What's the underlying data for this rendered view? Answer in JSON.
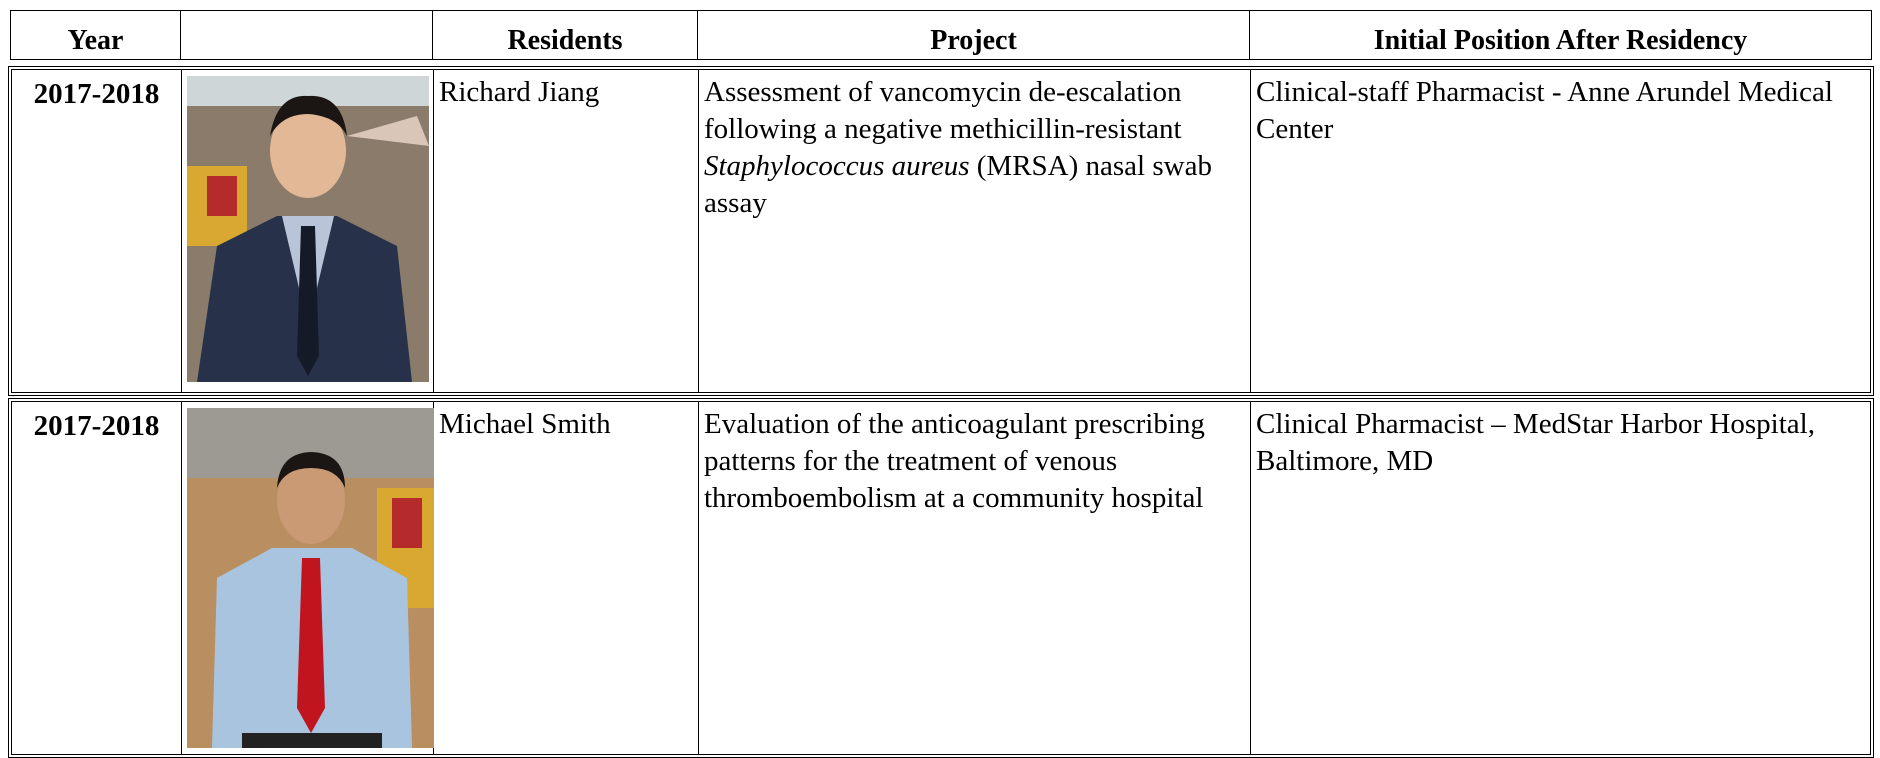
{
  "table": {
    "header": {
      "year": "Year",
      "residents": "Residents",
      "project": "Project",
      "position": "Initial Position After Residency"
    },
    "rows": [
      {
        "year": "2017-2018",
        "resident": "Richard Jiang",
        "project": [
          "Assessment of vancomycin de-escalation following a negative methicillin-resistant ",
          "Staphylococcus aureus",
          " (MRSA) nasal swab assay"
        ],
        "position": "Clinical-staff Pharmacist - Anne Arundel Medical Center"
      },
      {
        "year": "2017-2018",
        "resident": "Michael Smith",
        "project": [
          "Evaluation of the anticoagulant prescribing patterns for the treatment of venous thromboembolism at a community hospital"
        ],
        "position": "Clinical Pharmacist – MedStar Harbor Hospital, Baltimore, MD"
      }
    ]
  }
}
